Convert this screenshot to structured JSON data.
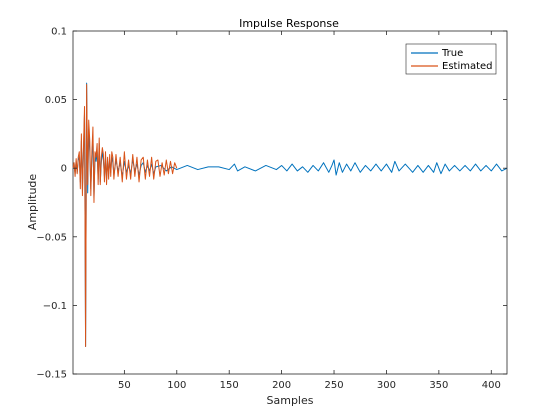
{
  "chart_data": {
    "type": "line",
    "title": "Impulse Response",
    "xlabel": "Samples",
    "ylabel": "Amplitude",
    "xlim": [
      1,
      415
    ],
    "ylim": [
      -0.15,
      0.1
    ],
    "xticks": [
      50,
      100,
      150,
      200,
      250,
      300,
      350,
      400
    ],
    "yticks": [
      -0.15,
      -0.1,
      -0.05,
      0,
      0.05,
      0.1
    ],
    "ytick_labels": [
      "−0.15",
      "−0.1",
      "−0.05",
      "0",
      "0.05",
      "0.1"
    ],
    "grid": false,
    "legend": "top-right",
    "series": [
      {
        "name": "True",
        "color": "#0072BD",
        "x": [
          1,
          2,
          3,
          4,
          5,
          6,
          7,
          8,
          9,
          10,
          11,
          12,
          13,
          14,
          15,
          16,
          17,
          18,
          19,
          20,
          21,
          22,
          23,
          24,
          25,
          26,
          27,
          28,
          29,
          30,
          31,
          32,
          33,
          34,
          35,
          36,
          37,
          38,
          39,
          40,
          42,
          44,
          46,
          48,
          50,
          52,
          54,
          56,
          58,
          60,
          62,
          64,
          66,
          68,
          70,
          72,
          74,
          76,
          78,
          80,
          85,
          90,
          95,
          100,
          110,
          120,
          130,
          140,
          150,
          155,
          158,
          165,
          175,
          185,
          195,
          200,
          205,
          210,
          215,
          220,
          225,
          230,
          235,
          240,
          245,
          248,
          250,
          252,
          255,
          258,
          262,
          266,
          270,
          275,
          280,
          285,
          290,
          295,
          300,
          305,
          308,
          312,
          318,
          325,
          330,
          335,
          340,
          345,
          348,
          352,
          356,
          360,
          365,
          370,
          375,
          380,
          385,
          390,
          395,
          400,
          405,
          410,
          415
        ],
        "values": [
          0,
          0.003,
          -0.004,
          0.005,
          -0.003,
          0.006,
          0.008,
          -0.01,
          0.02,
          -0.015,
          0.012,
          0.04,
          -0.13,
          0.062,
          -0.018,
          0.028,
          0.012,
          -0.015,
          0.008,
          0.022,
          -0.022,
          0.01,
          0.005,
          0.012,
          -0.008,
          0.018,
          -0.01,
          0.004,
          0.012,
          0.006,
          -0.006,
          0.008,
          -0.008,
          0.005,
          -0.004,
          0.006,
          -0.003,
          0.008,
          0.004,
          -0.005,
          0.006,
          -0.002,
          0.004,
          -0.006,
          0.005,
          -0.003,
          0.002,
          -0.004,
          0.006,
          -0.002,
          0.003,
          -0.005,
          0.002,
          0.004,
          -0.003,
          0.002,
          -0.002,
          0.003,
          -0.004,
          0.001,
          0.002,
          -0.002,
          0.001,
          -0.001,
          0.002,
          -0.001,
          0.001,
          0.001,
          -0.001,
          0.003,
          -0.002,
          0.001,
          -0.002,
          0.002,
          -0.001,
          0.002,
          -0.002,
          0.003,
          -0.002,
          0.001,
          -0.003,
          0.002,
          -0.002,
          0.004,
          -0.003,
          0.002,
          0.006,
          -0.005,
          0.004,
          -0.003,
          0.003,
          -0.002,
          0.004,
          -0.003,
          0.002,
          -0.002,
          0.003,
          -0.002,
          0.003,
          -0.003,
          0.005,
          -0.002,
          0.003,
          -0.003,
          0.002,
          -0.003,
          0.002,
          -0.003,
          0.004,
          -0.004,
          0.003,
          -0.002,
          0.002,
          -0.002,
          0.002,
          -0.002,
          0.003,
          -0.002,
          0.002,
          -0.002,
          0.003,
          -0.002,
          0
        ]
      },
      {
        "name": "Estimated",
        "color": "#D95319",
        "x": [
          1,
          2,
          3,
          4,
          5,
          6,
          7,
          8,
          9,
          10,
          11,
          12,
          13,
          14,
          15,
          16,
          17,
          18,
          19,
          20,
          21,
          22,
          23,
          24,
          25,
          26,
          27,
          28,
          29,
          30,
          31,
          32,
          33,
          34,
          35,
          36,
          37,
          38,
          39,
          40,
          42,
          44,
          46,
          48,
          50,
          52,
          54,
          56,
          58,
          60,
          62,
          64,
          66,
          68,
          70,
          72,
          74,
          76,
          78,
          80,
          82,
          84,
          86,
          88,
          90,
          92,
          94,
          96,
          98,
          100
        ],
        "values": [
          0,
          0.004,
          -0.006,
          0.007,
          -0.004,
          0.008,
          0.012,
          -0.015,
          0.025,
          -0.02,
          0.015,
          0.045,
          -0.13,
          0.061,
          -0.012,
          0.035,
          0.02,
          -0.02,
          0.012,
          0.03,
          -0.025,
          0.012,
          0.008,
          0.018,
          -0.012,
          0.022,
          -0.012,
          0.008,
          0.015,
          0.01,
          -0.01,
          0.012,
          -0.012,
          0.008,
          -0.008,
          0.01,
          -0.006,
          0.012,
          0.008,
          -0.008,
          0.01,
          -0.006,
          0.008,
          -0.01,
          0.012,
          -0.008,
          0.006,
          -0.008,
          0.01,
          -0.006,
          0.008,
          -0.01,
          0.006,
          0.008,
          -0.008,
          0.006,
          -0.006,
          0.008,
          -0.008,
          0.005,
          0.006,
          -0.006,
          0.004,
          -0.005,
          0.006,
          -0.004,
          0.005,
          -0.004,
          0.004,
          0
        ]
      }
    ]
  }
}
